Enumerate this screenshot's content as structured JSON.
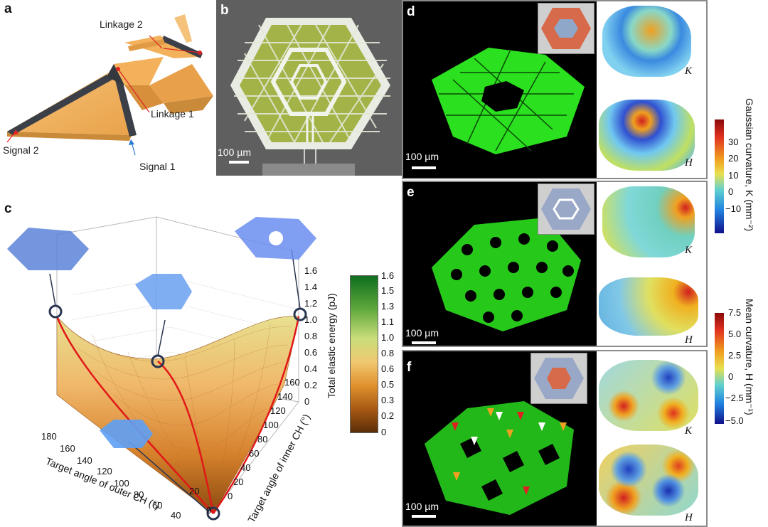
{
  "panels": {
    "a": {
      "label": "a",
      "linkage2": "Linkage 2",
      "linkage1": "Linkage 1",
      "signal2": "Signal 2",
      "signal1": "Signal 1"
    },
    "b": {
      "label": "b",
      "scale": "100 µm"
    },
    "c": {
      "label": "c"
    },
    "d": {
      "label": "d",
      "scale": "100 µm",
      "k_label": "K",
      "h_label": "H"
    },
    "e": {
      "label": "e",
      "scale": "100 µm",
      "k_label": "K",
      "h_label": "H"
    },
    "f": {
      "label": "f",
      "scale": "100 µm",
      "k_label": "K",
      "h_label": "H"
    }
  },
  "gaussian_colorbar": {
    "title": "Gaussian curvature, K (mm⁻²)",
    "ticks": [
      "30",
      "20",
      "10",
      "0",
      "−10"
    ]
  },
  "mean_colorbar": {
    "title": "Mean curvature, H (mm⁻¹)",
    "ticks": [
      "7.5",
      "5.0",
      "2.5",
      "0",
      "−2.5",
      "−5.0"
    ]
  },
  "colors": {
    "orange": "#f2b15a",
    "green": "#2fdc1a",
    "red": "#e02020",
    "navy": "#2a3550"
  },
  "chart_data": {
    "type": "surface3d",
    "title": "",
    "xlabel": "Target angle of outer CH (°)",
    "ylabel": "Target angle of inner CH (°)",
    "zlabel": "Total elastic energy (pJ)",
    "x_ticks": [
      "180",
      "160",
      "140",
      "120",
      "100",
      "80",
      "60",
      "40",
      "20",
      "0"
    ],
    "y_ticks": [
      "0",
      "20",
      "40",
      "60",
      "80",
      "100",
      "120",
      "140",
      "160"
    ],
    "z_ticks": [
      "1.6",
      "1.4",
      "1.2",
      "1.0",
      "0.8",
      "0.6",
      "0.4",
      "0.2",
      "0"
    ],
    "colorbar_ticks": [
      "1.6",
      "1.5",
      "1.3",
      "1.1",
      "1.0",
      "0.8",
      "0.6",
      "0.5",
      "0.3",
      "0.2",
      "0"
    ],
    "xlim": [
      0,
      180
    ],
    "ylim": [
      0,
      160
    ],
    "zlim": [
      0,
      1.6
    ],
    "marked_points": [
      {
        "outer": 180,
        "inner": 0,
        "energy": 1.1
      },
      {
        "outer": 0,
        "inner": 180,
        "energy": 1.1
      },
      {
        "outer": 90,
        "inner": 90,
        "energy": 0.55
      },
      {
        "outer": 0,
        "inner": 0,
        "energy": 0
      }
    ]
  }
}
